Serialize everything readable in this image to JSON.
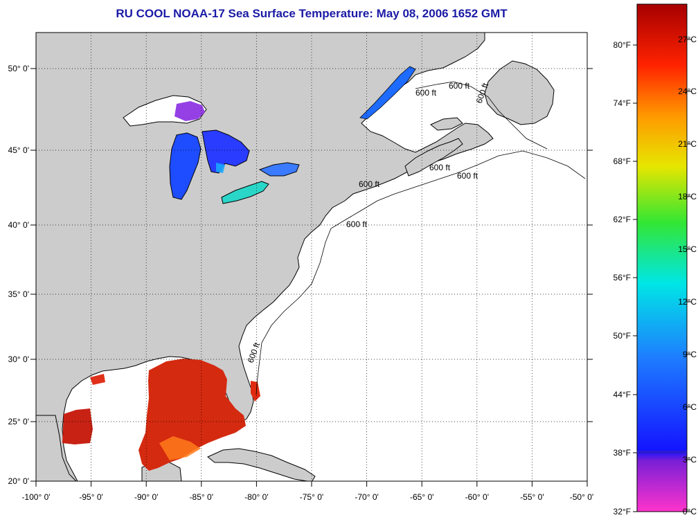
{
  "title": "RU COOL  NOAA-17  Sea Surface Temperature:  May 08, 2006 1652 GMT",
  "map": {
    "lon_ticks": [
      "-100° 0'",
      "-95° 0'",
      "-90° 0'",
      "-85° 0'",
      "-80° 0'",
      "-75° 0'",
      "-70° 0'",
      "-65° 0'",
      "-60° 0'",
      "-55° 0'",
      "-50° 0'"
    ],
    "lat_ticks": [
      "50° 0'",
      "45° 0'",
      "40° 0'",
      "35° 0'",
      "30° 0'",
      "25° 0'",
      "20° 0'"
    ],
    "contour_labels": [
      "600 ft",
      "600 ft",
      "600 ft",
      "600 ft",
      "600 ft",
      "600 ft",
      "600 ft",
      "600 ft"
    ],
    "colors": {
      "land": "#cccccc",
      "ocean": "#ffffff",
      "grid": "#000000"
    }
  },
  "colorbar": {
    "fahrenheit_labels": [
      "80°F",
      "74°F",
      "68°F",
      "62°F",
      "56°F",
      "50°F",
      "44°F",
      "38°F",
      "32°F"
    ],
    "celsius_labels": [
      "27°C",
      "24°C",
      "21°C",
      "18°C",
      "15°C",
      "12°C",
      "9°C",
      "6°C",
      "3°C",
      "0°C"
    ],
    "colors": [
      "#ff33cc",
      "#7a1fd6",
      "#1414ff",
      "#1e7bff",
      "#00e6e6",
      "#33e633",
      "#e6e600",
      "#ff9900",
      "#ff2200",
      "#a60000"
    ]
  }
}
